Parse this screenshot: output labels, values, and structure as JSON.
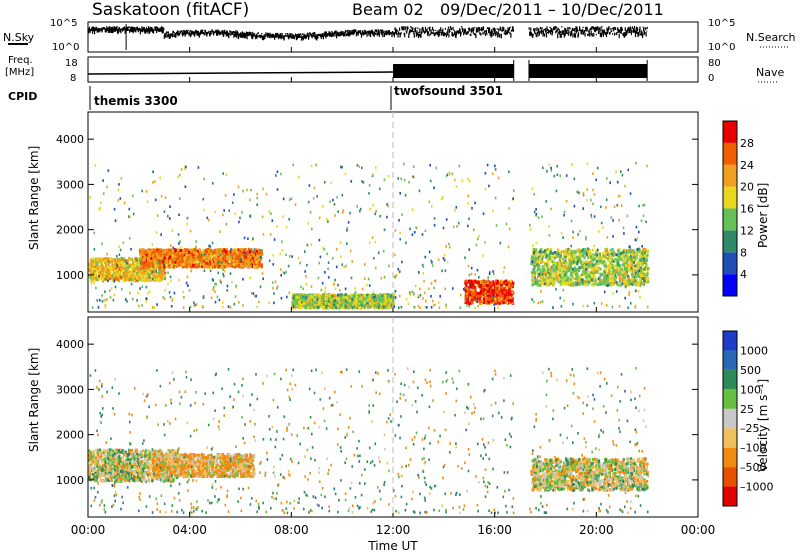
{
  "header": {
    "station": "Saskatoon (fitACF)",
    "beam": "Beam 02",
    "date_range": "09/Dec/2011 – 10/Dec/2011"
  },
  "side_labels": {
    "nsky": "N.Sky",
    "nsearch": "N.Search",
    "freq_line1": "Freq.",
    "freq_line2": "[MHz]",
    "nave": "Nave",
    "cpid": "CPID"
  },
  "noise_axis": {
    "left_ticks": [
      "10^5",
      "10^0"
    ],
    "right_ticks": [
      "10^5",
      "10^0"
    ]
  },
  "freq_axis": {
    "left_ticks": [
      "18",
      "8"
    ],
    "right_ticks": [
      "80",
      "0"
    ]
  },
  "cpid": [
    {
      "start_hour": 0,
      "label": "themis 3300"
    },
    {
      "start_hour": 12,
      "label": "twofsound 3501"
    }
  ],
  "chart_data": [
    {
      "type": "heatmap",
      "title": "",
      "xlabel": "Time UT",
      "ylabel": "Slant Range [km]",
      "x_ticks": [
        "00:00",
        "04:00",
        "08:00",
        "12:00",
        "16:00",
        "20:00",
        "00:00"
      ],
      "y_ticks": [
        "1000",
        "2000",
        "3000",
        "4000"
      ],
      "xlim_hours": [
        0,
        24
      ],
      "ylim_km": [
        180,
        4600
      ],
      "colorbar": {
        "label": "Power [dB]",
        "ticks": [
          "4",
          "8",
          "12",
          "16",
          "20",
          "24",
          "28"
        ],
        "colors": [
          "#0000ff",
          "#1f4fb4",
          "#2f8a6a",
          "#66c05a",
          "#e8d820",
          "#f0a020",
          "#f06000",
          "#e80000"
        ]
      }
    },
    {
      "type": "heatmap",
      "title": "",
      "xlabel": "Time UT",
      "ylabel": "Slant Range [km]",
      "x_ticks": [
        "00:00",
        "04:00",
        "08:00",
        "12:00",
        "16:00",
        "20:00",
        "00:00"
      ],
      "y_ticks": [
        "1000",
        "2000",
        "3000",
        "4000"
      ],
      "xlim_hours": [
        0,
        24
      ],
      "ylim_km": [
        180,
        4600
      ],
      "colorbar": {
        "label": "Velocity [m s⁻¹]",
        "ticks": [
          "1000",
          "500",
          "100",
          "25",
          "–25",
          "–100",
          "–500",
          "–1000"
        ],
        "colors": [
          "#1e3cc8",
          "#2a68b4",
          "#2f8a5a",
          "#66c040",
          "#c8c8c8",
          "#f0c060",
          "#f08a10",
          "#e85000",
          "#e00000"
        ]
      }
    }
  ],
  "data_coverage": {
    "gaps_hours": [
      [
        16.75,
        17.35
      ],
      [
        22.0,
        24.0
      ]
    ],
    "notable_echo_bands": [
      {
        "panel": "power",
        "hours": [
          0.0,
          3.0
        ],
        "range_km": [
          900,
          1400
        ],
        "level_db": 20
      },
      {
        "panel": "power",
        "hours": [
          2.0,
          6.8
        ],
        "range_km": [
          1200,
          1600
        ],
        "level_db": 24
      },
      {
        "panel": "power",
        "hours": [
          8.0,
          12.0
        ],
        "range_km": [
          300,
          600
        ],
        "level_db": 16
      },
      {
        "panel": "power",
        "hours": [
          14.8,
          16.7
        ],
        "range_km": [
          400,
          900
        ],
        "level_db": 28
      },
      {
        "panel": "power",
        "hours": [
          17.4,
          22.0
        ],
        "range_km": [
          800,
          1600
        ],
        "level_db": 16
      },
      {
        "panel": "velocity",
        "hours": [
          0.0,
          3.5
        ],
        "range_km": [
          1000,
          1700
        ],
        "level_ms": 0
      },
      {
        "panel": "velocity",
        "hours": [
          2.5,
          6.5
        ],
        "range_km": [
          1100,
          1600
        ],
        "level_ms": -100
      },
      {
        "panel": "velocity",
        "hours": [
          17.4,
          22.0
        ],
        "range_km": [
          800,
          1500
        ],
        "level_ms": 0
      }
    ]
  }
}
